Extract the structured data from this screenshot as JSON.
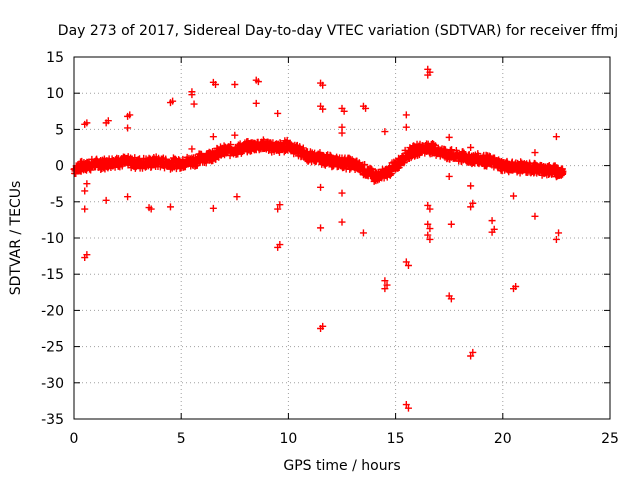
{
  "chart_data": {
    "type": "scatter",
    "title": "Day 273 of 2017, Sidereal Day-to-day VTEC variation (SDTVAR) for receiver ffmj",
    "xlabel": "GPS time / hours",
    "ylabel": "SDTVAR / TECUs",
    "xlim": [
      0,
      25
    ],
    "ylim": [
      -35,
      15
    ],
    "xticks": [
      "0",
      "5",
      "10",
      "15",
      "20",
      "25"
    ],
    "yticks": [
      "15",
      "10",
      "5",
      "0",
      "-5",
      "-10",
      "-15",
      "-20",
      "-25",
      "-30",
      "-35"
    ],
    "grid": true,
    "marker": "plus",
    "series_color": "#ff0000",
    "main_trend": [
      [
        0.0,
        -0.5
      ],
      [
        0.5,
        0.0
      ],
      [
        1.0,
        0.2
      ],
      [
        1.5,
        0.3
      ],
      [
        2.0,
        0.6
      ],
      [
        2.5,
        0.5
      ],
      [
        3.0,
        0.3
      ],
      [
        3.5,
        0.4
      ],
      [
        4.0,
        0.5
      ],
      [
        4.5,
        0.3
      ],
      [
        5.0,
        0.4
      ],
      [
        5.5,
        0.6
      ],
      [
        6.0,
        1.0
      ],
      [
        6.5,
        1.5
      ],
      [
        7.0,
        2.0
      ],
      [
        7.5,
        2.2
      ],
      [
        8.0,
        2.5
      ],
      [
        8.5,
        2.8
      ],
      [
        9.0,
        2.8
      ],
      [
        9.5,
        2.4
      ],
      [
        10.0,
        2.8
      ],
      [
        10.5,
        2.0
      ],
      [
        11.0,
        1.2
      ],
      [
        11.5,
        1.0
      ],
      [
        12.0,
        0.6
      ],
      [
        12.5,
        0.4
      ],
      [
        13.0,
        0.2
      ],
      [
        13.5,
        -0.5
      ],
      [
        14.0,
        -1.5
      ],
      [
        14.5,
        -1.2
      ],
      [
        15.0,
        0.0
      ],
      [
        15.5,
        1.5
      ],
      [
        16.0,
        2.2
      ],
      [
        16.5,
        2.5
      ],
      [
        17.0,
        2.0
      ],
      [
        17.5,
        1.5
      ],
      [
        18.0,
        1.2
      ],
      [
        18.5,
        1.0
      ],
      [
        19.0,
        0.8
      ],
      [
        19.5,
        0.5
      ],
      [
        20.0,
        0.0
      ],
      [
        20.5,
        -0.2
      ],
      [
        21.0,
        -0.3
      ],
      [
        21.5,
        -0.4
      ],
      [
        22.0,
        -0.6
      ],
      [
        22.5,
        -0.8
      ],
      [
        22.8,
        -1.0
      ]
    ],
    "outliers": [
      [
        0.5,
        5.7
      ],
      [
        0.6,
        5.9
      ],
      [
        0.5,
        -3.5
      ],
      [
        0.6,
        -2.5
      ],
      [
        0.5,
        -6.0
      ],
      [
        0.6,
        -12.3
      ],
      [
        0.5,
        -12.7
      ],
      [
        1.5,
        5.9
      ],
      [
        1.6,
        6.2
      ],
      [
        1.5,
        -4.8
      ],
      [
        2.5,
        6.8
      ],
      [
        2.6,
        7.0
      ],
      [
        2.5,
        5.2
      ],
      [
        2.5,
        -4.3
      ],
      [
        3.5,
        -5.8
      ],
      [
        3.6,
        -6.0
      ],
      [
        4.5,
        8.7
      ],
      [
        4.6,
        8.9
      ],
      [
        4.5,
        -5.7
      ],
      [
        5.5,
        10.2
      ],
      [
        5.5,
        9.8
      ],
      [
        5.6,
        8.5
      ],
      [
        5.5,
        2.3
      ],
      [
        6.5,
        11.5
      ],
      [
        6.6,
        11.2
      ],
      [
        6.5,
        4.0
      ],
      [
        6.5,
        -5.9
      ],
      [
        7.5,
        11.2
      ],
      [
        7.5,
        4.2
      ],
      [
        7.6,
        -4.3
      ],
      [
        8.5,
        11.8
      ],
      [
        8.6,
        11.6
      ],
      [
        8.5,
        8.6
      ],
      [
        9.5,
        7.2
      ],
      [
        9.6,
        -5.4
      ],
      [
        9.5,
        -6.0
      ],
      [
        9.6,
        -10.9
      ],
      [
        9.5,
        -11.3
      ],
      [
        11.5,
        11.4
      ],
      [
        11.6,
        11.1
      ],
      [
        11.5,
        8.2
      ],
      [
        11.6,
        7.8
      ],
      [
        11.5,
        -3.0
      ],
      [
        11.5,
        -8.6
      ],
      [
        11.6,
        -22.2
      ],
      [
        11.5,
        -22.5
      ],
      [
        12.5,
        7.9
      ],
      [
        12.6,
        7.5
      ],
      [
        12.5,
        5.3
      ],
      [
        12.5,
        4.5
      ],
      [
        12.5,
        -3.8
      ],
      [
        12.5,
        -7.8
      ],
      [
        13.5,
        8.2
      ],
      [
        13.6,
        7.9
      ],
      [
        13.5,
        -9.3
      ],
      [
        14.5,
        4.7
      ],
      [
        14.5,
        -15.9
      ],
      [
        14.6,
        -16.5
      ],
      [
        14.5,
        -17.0
      ],
      [
        15.5,
        7.0
      ],
      [
        15.5,
        5.3
      ],
      [
        15.5,
        -13.3
      ],
      [
        15.6,
        -13.8
      ],
      [
        15.5,
        -33.0
      ],
      [
        15.6,
        -33.5
      ],
      [
        16.5,
        13.3
      ],
      [
        16.6,
        12.9
      ],
      [
        16.5,
        12.5
      ],
      [
        16.5,
        -5.5
      ],
      [
        16.6,
        -6.0
      ],
      [
        16.5,
        -8.1
      ],
      [
        16.6,
        -8.7
      ],
      [
        16.5,
        -9.6
      ],
      [
        16.6,
        -10.2
      ],
      [
        17.5,
        3.9
      ],
      [
        17.5,
        -1.5
      ],
      [
        17.6,
        -8.1
      ],
      [
        17.5,
        -18.0
      ],
      [
        17.6,
        -18.4
      ],
      [
        18.5,
        2.5
      ],
      [
        18.5,
        -2.8
      ],
      [
        18.6,
        -5.2
      ],
      [
        18.5,
        -5.7
      ],
      [
        18.6,
        -25.8
      ],
      [
        18.5,
        -26.3
      ],
      [
        19.5,
        -7.6
      ],
      [
        19.6,
        -8.8
      ],
      [
        19.5,
        -9.2
      ],
      [
        20.5,
        -4.2
      ],
      [
        20.6,
        -16.7
      ],
      [
        20.5,
        -17.0
      ],
      [
        21.5,
        1.8
      ],
      [
        21.5,
        -7.0
      ],
      [
        22.5,
        4.0
      ],
      [
        22.6,
        -9.3
      ],
      [
        22.5,
        -10.2
      ]
    ]
  }
}
